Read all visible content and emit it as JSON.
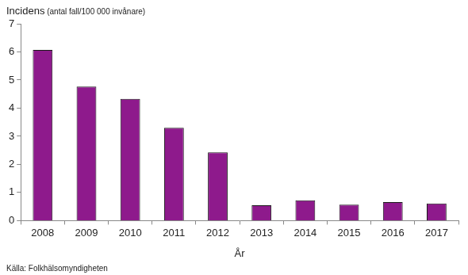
{
  "chart_data": {
    "type": "bar",
    "y_label": "Incidens (antal fall/100 000 invånare)",
    "x_label": "År",
    "source": "Källa: Folkhälsomyndigheten",
    "categories": [
      "2008",
      "2009",
      "2010",
      "2011",
      "2012",
      "2013",
      "2014",
      "2015",
      "2016",
      "2017"
    ],
    "values": [
      6.07,
      4.77,
      4.33,
      3.3,
      2.43,
      0.55,
      0.72,
      0.57,
      0.66,
      0.61
    ],
    "color": "#8e1a8c",
    "ylim": [
      0,
      7
    ],
    "yticks": [
      0,
      1,
      2,
      3,
      4,
      5,
      6,
      7
    ],
    "grid": false
  }
}
